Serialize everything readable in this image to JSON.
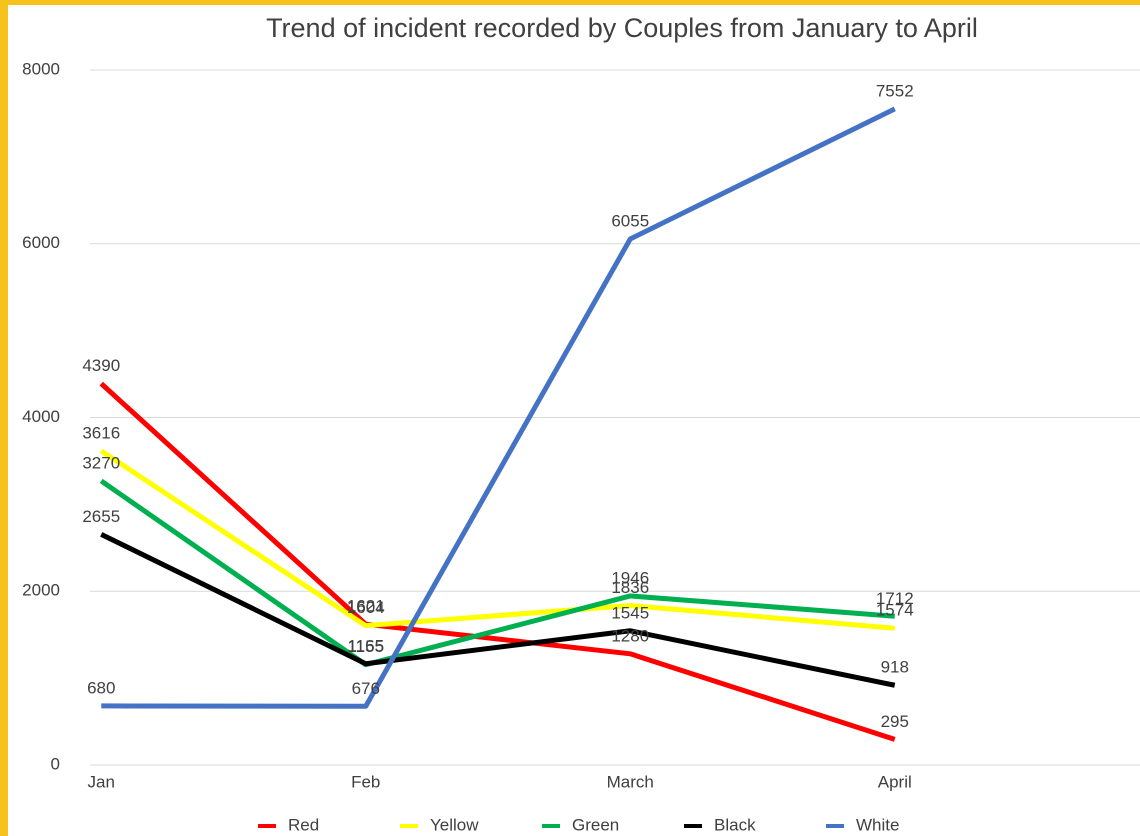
{
  "chart_data": {
    "type": "line",
    "title": "Trend of incident recorded by Couples  from January to April",
    "categories": [
      "Jan",
      "Feb",
      "March",
      "April"
    ],
    "series": [
      {
        "name": "Red",
        "color": "#ff0000",
        "values": [
          4390,
          1621,
          1280,
          295
        ]
      },
      {
        "name": "Yellow",
        "color": "#ffff00",
        "values": [
          3616,
          1604,
          1836,
          1574
        ]
      },
      {
        "name": "Green",
        "color": "#00b050",
        "values": [
          3270,
          1155,
          1946,
          1712
        ]
      },
      {
        "name": "Black",
        "color": "#000000",
        "values": [
          2655,
          1165,
          1545,
          918
        ]
      },
      {
        "name": "White",
        "color": "#4472c4",
        "values": [
          680,
          676,
          6055,
          7552
        ]
      }
    ],
    "ylim": [
      0,
      8000
    ],
    "yticks": [
      0,
      2000,
      4000,
      6000,
      8000
    ],
    "grid": true,
    "legend": "bottom"
  }
}
